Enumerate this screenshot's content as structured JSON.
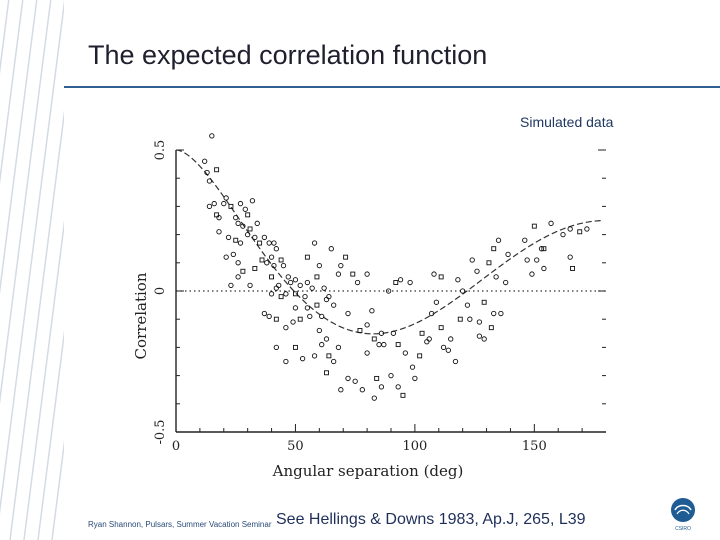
{
  "slide": {
    "title": "The expected correlation function",
    "subtitle": "Simulated data",
    "footer_left": "Ryan Shannon, Pulsars, Summer Vacation Seminar",
    "footer_reference": "See Hellings & Downs 1983, Ap.J, 265, L39",
    "logo_text": "CSIRO",
    "accent_color": "#2d5f8f",
    "logo_color": "#1f5c94"
  },
  "chart_data": {
    "type": "scatter",
    "title": "",
    "xlabel": "Angular separation (deg)",
    "ylabel": "Correlation",
    "xlim": [
      0,
      180
    ],
    "ylim": [
      -0.5,
      0.5
    ],
    "xticks": [
      0,
      50,
      100,
      150
    ],
    "yticks": [
      -0.5,
      0,
      0.5
    ],
    "xtick_labels": [
      "0",
      "50",
      "100",
      "150"
    ],
    "ytick_labels": [
      "-0.5",
      "0",
      "0.5"
    ],
    "grid": false,
    "zero_line": "dotted",
    "series": [
      {
        "kind": "points",
        "points": [
          [
            15,
            0.55
          ],
          [
            12,
            0.46
          ],
          [
            13,
            0.42
          ],
          [
            17,
            0.43
          ],
          [
            14,
            0.39
          ],
          [
            16,
            0.31
          ],
          [
            14,
            0.3
          ],
          [
            17,
            0.27
          ],
          [
            18,
            0.26
          ],
          [
            21,
            0.33
          ],
          [
            20,
            0.31
          ],
          [
            23,
            0.3
          ],
          [
            25,
            0.26
          ],
          [
            27,
            0.31
          ],
          [
            29,
            0.29
          ],
          [
            30,
            0.27
          ],
          [
            32,
            0.32
          ],
          [
            26,
            0.24
          ],
          [
            28,
            0.23
          ],
          [
            31,
            0.22
          ],
          [
            34,
            0.24
          ],
          [
            18,
            0.21
          ],
          [
            22,
            0.19
          ],
          [
            25,
            0.18
          ],
          [
            27,
            0.17
          ],
          [
            30,
            0.2
          ],
          [
            33,
            0.19
          ],
          [
            35,
            0.17
          ],
          [
            37,
            0.19
          ],
          [
            39,
            0.17
          ],
          [
            41,
            0.17
          ],
          [
            36,
            0.11
          ],
          [
            38,
            0.1
          ],
          [
            40,
            0.12
          ],
          [
            42,
            0.15
          ],
          [
            44,
            0.11
          ],
          [
            24,
            0.13
          ],
          [
            21,
            0.12
          ],
          [
            26,
            0.1
          ],
          [
            28,
            0.07
          ],
          [
            26,
            0.05
          ],
          [
            23,
            0.02
          ],
          [
            31,
            0.02
          ],
          [
            33,
            0.08
          ],
          [
            41,
            0.09
          ],
          [
            45,
            0.09
          ],
          [
            47,
            0.05
          ],
          [
            40,
            0.05
          ],
          [
            43,
            0.02
          ],
          [
            40,
            -0.01
          ],
          [
            42,
            0.01
          ],
          [
            44,
            -0.02
          ],
          [
            46,
            -0.01
          ],
          [
            48,
            0.03
          ],
          [
            50,
            0.04
          ],
          [
            50,
            -0.01
          ],
          [
            52,
            0.02
          ],
          [
            55,
            0.03
          ],
          [
            57,
            0.01
          ],
          [
            59,
            0.05
          ],
          [
            62,
            0.01
          ],
          [
            64,
            -0.02
          ],
          [
            60,
            0.09
          ],
          [
            55,
            0.12
          ],
          [
            58,
            0.17
          ],
          [
            65,
            0.15
          ],
          [
            69,
            0.09
          ],
          [
            71,
            0.12
          ],
          [
            63,
            -0.03
          ],
          [
            66,
            -0.05
          ],
          [
            68,
            0.06
          ],
          [
            74,
            0.06
          ],
          [
            76,
            0.03
          ],
          [
            80,
            0.06
          ],
          [
            89,
            0.0
          ],
          [
            92,
            0.03
          ],
          [
            94,
            0.04
          ],
          [
            98,
            0.03
          ],
          [
            108,
            0.06
          ],
          [
            111,
            0.05
          ],
          [
            118,
            0.04
          ],
          [
            120,
            0.0
          ],
          [
            124,
            0.11
          ],
          [
            131,
            0.1
          ],
          [
            126,
            0.07
          ],
          [
            134,
            0.05
          ],
          [
            138,
            0.03
          ],
          [
            133,
            0.15
          ],
          [
            135,
            0.18
          ],
          [
            139,
            0.13
          ],
          [
            146,
            0.18
          ],
          [
            150,
            0.23
          ],
          [
            151,
            0.11
          ],
          [
            149,
            0.06
          ],
          [
            153,
            0.15
          ],
          [
            154,
            0.15
          ],
          [
            147,
            0.11
          ],
          [
            154,
            0.08
          ],
          [
            165,
            0.12
          ],
          [
            166,
            0.08
          ],
          [
            157,
            0.24
          ],
          [
            162,
            0.2
          ],
          [
            165,
            0.22
          ],
          [
            169,
            0.21
          ],
          [
            172,
            0.22
          ],
          [
            37,
            -0.08
          ],
          [
            39,
            -0.09
          ],
          [
            42,
            -0.1
          ],
          [
            46,
            -0.13
          ],
          [
            49,
            -0.11
          ],
          [
            50,
            -0.06
          ],
          [
            52,
            -0.1
          ],
          [
            54,
            -0.02
          ],
          [
            55,
            -0.06
          ],
          [
            56,
            -0.09
          ],
          [
            59,
            -0.05
          ],
          [
            61,
            -0.09
          ],
          [
            63,
            -0.17
          ],
          [
            60,
            -0.14
          ],
          [
            63,
            -0.29
          ],
          [
            66,
            -0.25
          ],
          [
            68,
            -0.2
          ],
          [
            72,
            -0.08
          ],
          [
            77,
            -0.14
          ],
          [
            80,
            -0.12
          ],
          [
            82,
            -0.07
          ],
          [
            85,
            -0.19
          ],
          [
            83,
            -0.17
          ],
          [
            86,
            -0.15
          ],
          [
            87,
            -0.19
          ],
          [
            91,
            -0.15
          ],
          [
            93,
            -0.19
          ],
          [
            96,
            -0.22
          ],
          [
            99,
            -0.27
          ],
          [
            100,
            -0.31
          ],
          [
            103,
            -0.15
          ],
          [
            105,
            -0.18
          ],
          [
            107,
            -0.08
          ],
          [
            109,
            -0.04
          ],
          [
            111,
            -0.13
          ],
          [
            114,
            -0.21
          ],
          [
            117,
            -0.25
          ],
          [
            123,
            -0.1
          ],
          [
            129,
            -0.04
          ],
          [
            133,
            -0.08
          ],
          [
            42,
            -0.2
          ],
          [
            46,
            -0.25
          ],
          [
            50,
            -0.2
          ],
          [
            53,
            -0.24
          ],
          [
            58,
            -0.23
          ],
          [
            61,
            -0.19
          ],
          [
            64,
            -0.23
          ],
          [
            69,
            -0.35
          ],
          [
            72,
            -0.31
          ],
          [
            80,
            -0.22
          ],
          [
            84,
            -0.31
          ],
          [
            86,
            -0.34
          ],
          [
            90,
            -0.3
          ],
          [
            93,
            -0.34
          ],
          [
            95,
            -0.37
          ],
          [
            83,
            -0.38
          ],
          [
            75,
            -0.32
          ],
          [
            78,
            -0.35
          ],
          [
            102,
            -0.23
          ],
          [
            106,
            -0.17
          ],
          [
            112,
            -0.2
          ],
          [
            115,
            -0.17
          ],
          [
            119,
            -0.1
          ],
          [
            122,
            -0.05
          ],
          [
            127,
            -0.11
          ],
          [
            129,
            -0.17
          ],
          [
            132,
            -0.13
          ],
          [
            136,
            -0.08
          ],
          [
            127,
            -0.16
          ]
        ]
      },
      {
        "kind": "curve",
        "name": "",
        "style": "dashed",
        "function": "hellings-downs"
      }
    ]
  }
}
